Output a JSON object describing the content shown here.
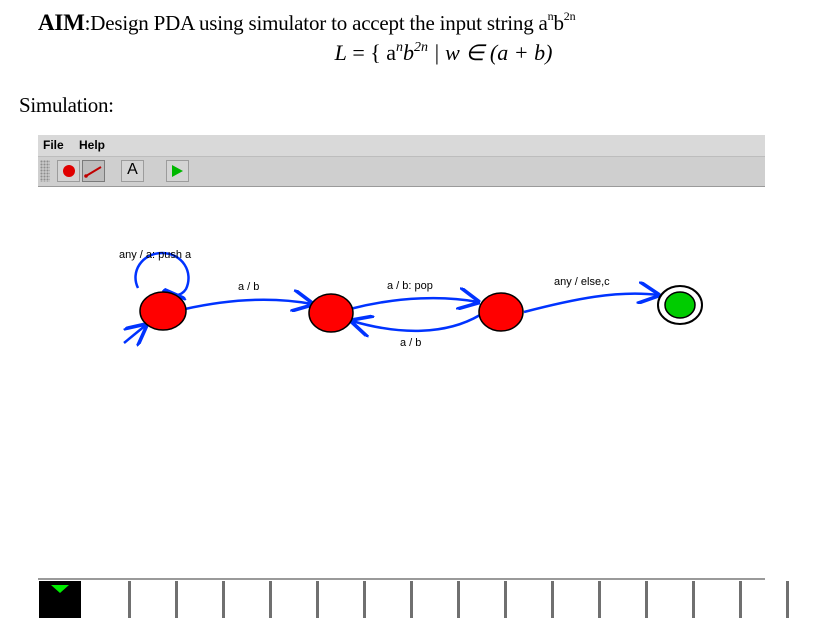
{
  "header": {
    "aim_label": "AIM",
    "aim_text": ":Design PDA using simulator to accept the input string  a",
    "aim_sup_n": "n",
    "aim_b": "b",
    "aim_sup_2n": "2n",
    "formula_L": "L",
    "formula_eq": " = { a",
    "formula_n": "n",
    "formula_b": "b",
    "formula_2n": "2n",
    "formula_rest": " | w ∈ (a + b)",
    "simulation_heading": "Simulation:"
  },
  "simulator": {
    "menus": [
      "File",
      "Help"
    ],
    "tools": [
      {
        "name": "state-tool",
        "icon": "red-dot-icon"
      },
      {
        "name": "transition-tool",
        "icon": "arrow-line-icon"
      },
      {
        "name": "label-tool",
        "icon": "letter-a-icon",
        "text": "A"
      },
      {
        "name": "run-tool",
        "icon": "play-icon"
      }
    ],
    "states": [
      {
        "id": "q0",
        "initial": true,
        "final": false
      },
      {
        "id": "q1",
        "initial": false,
        "final": false
      },
      {
        "id": "q2",
        "initial": false,
        "final": false
      },
      {
        "id": "q3",
        "initial": false,
        "final": true
      }
    ],
    "transitions": [
      {
        "from": "q0",
        "to": "q0",
        "label": "any / a: push a"
      },
      {
        "from": "q0",
        "to": "q1",
        "label": "a / b"
      },
      {
        "from": "q1",
        "to": "q2",
        "label": "a / b: pop"
      },
      {
        "from": "q2",
        "to": "q1",
        "label": "a / b"
      },
      {
        "from": "q2",
        "to": "q3",
        "label": "any / else,c"
      }
    ],
    "colors": {
      "state_fill": "#ff0000",
      "final_fill": "#00cc00",
      "arrow": "#0033ff"
    },
    "tape": {
      "cells": 15,
      "head_position": 0
    }
  }
}
